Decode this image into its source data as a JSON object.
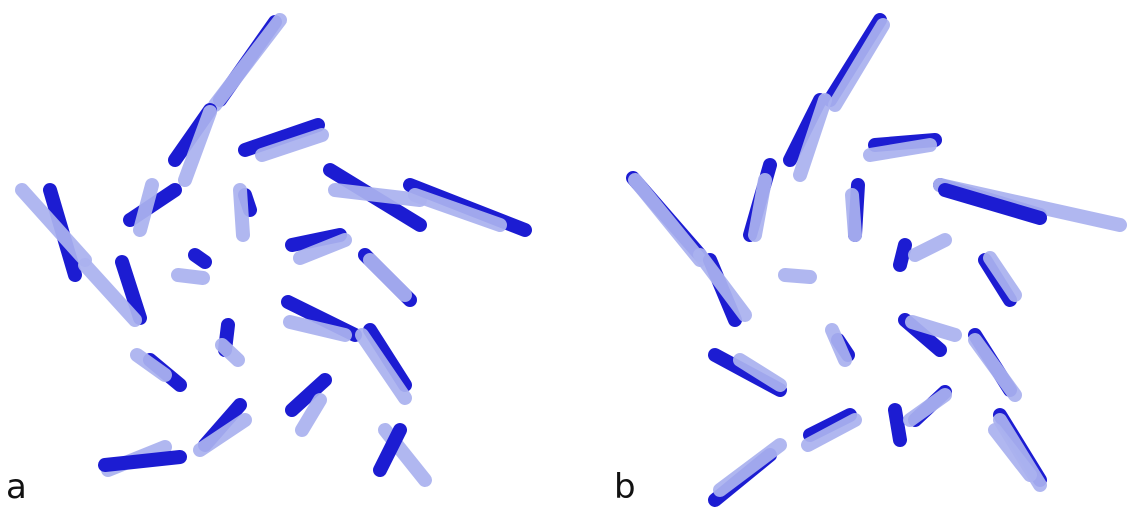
{
  "panels": [
    {
      "label": "a"
    },
    {
      "label": "b"
    }
  ]
}
